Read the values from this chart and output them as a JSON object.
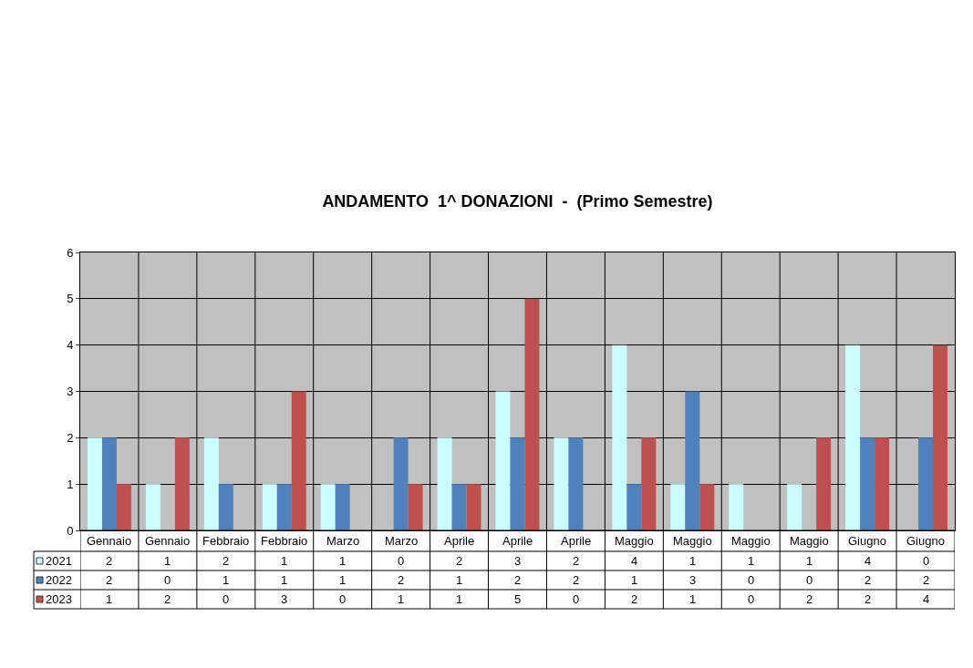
{
  "chart_data": {
    "type": "bar",
    "title": "ANDAMENTO  1^ DONAZIONI  -  (Primo Semestre)",
    "categories": [
      "Gennaio",
      "Gennaio",
      "Febbraio",
      "Febbraio",
      "Marzo",
      "Marzo",
      "Aprile",
      "Aprile",
      "Aprile",
      "Maggio",
      "Maggio",
      "Maggio",
      "Maggio",
      "Giugno",
      "Giugno"
    ],
    "series": [
      {
        "name": "2021",
        "color": "#ccffff",
        "values": [
          2,
          1,
          2,
          1,
          1,
          0,
          2,
          3,
          2,
          4,
          1,
          1,
          1,
          4,
          0
        ]
      },
      {
        "name": "2022",
        "color": "#4f81bd",
        "values": [
          2,
          0,
          1,
          1,
          1,
          2,
          1,
          2,
          2,
          1,
          3,
          0,
          0,
          2,
          2
        ]
      },
      {
        "name": "2023",
        "color": "#c0504d",
        "values": [
          1,
          2,
          0,
          3,
          0,
          1,
          1,
          5,
          0,
          2,
          1,
          0,
          2,
          2,
          4
        ]
      }
    ],
    "ylim": [
      0,
      6
    ],
    "yticks": [
      0,
      1,
      2,
      3,
      4,
      5,
      6
    ],
    "grid": true,
    "legend": "bottom left",
    "data_labels": true
  }
}
